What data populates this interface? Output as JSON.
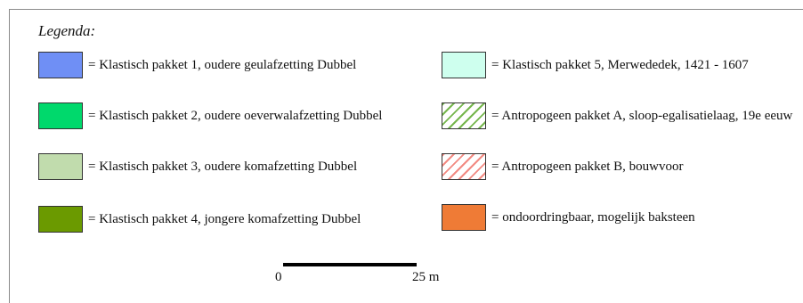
{
  "legend": {
    "title": "Legenda:",
    "items": [
      {
        "label": "= Klastisch pakket 1, oudere geulafzetting Dubbel",
        "fill": "#6f8ff5",
        "pattern": "solid"
      },
      {
        "label": "= Klastisch pakket 2, oudere oeverwalafzetting Dubbel",
        "fill": "#00d96c",
        "pattern": "solid"
      },
      {
        "label": "= Klastisch pakket 3, oudere komafzetting Dubbel",
        "fill": "#c1dcad",
        "pattern": "solid"
      },
      {
        "label": "= Klastisch pakket 4, jongere komafzetting Dubbel",
        "fill": "#6b9a00",
        "pattern": "solid"
      },
      {
        "label": "= Klastisch pakket 5, Merwededek, 1421 - 1607",
        "fill": "#ceffee",
        "pattern": "solid"
      },
      {
        "label": "= Antropogeen pakket A, sloop-egalisatielaag, 19e eeuw",
        "fill": "#76b64d",
        "pattern": "hatch"
      },
      {
        "label": "= Antropogeen pakket B, bouwvoor",
        "fill": "#f28a82",
        "pattern": "hatch"
      },
      {
        "label": "= ondoordringbaar, mogelijk baksteen",
        "fill": "#ef7b36",
        "pattern": "solid"
      }
    ]
  },
  "scale_bar": {
    "start_label": "0",
    "end_label": "25 m",
    "length_m": 25
  }
}
